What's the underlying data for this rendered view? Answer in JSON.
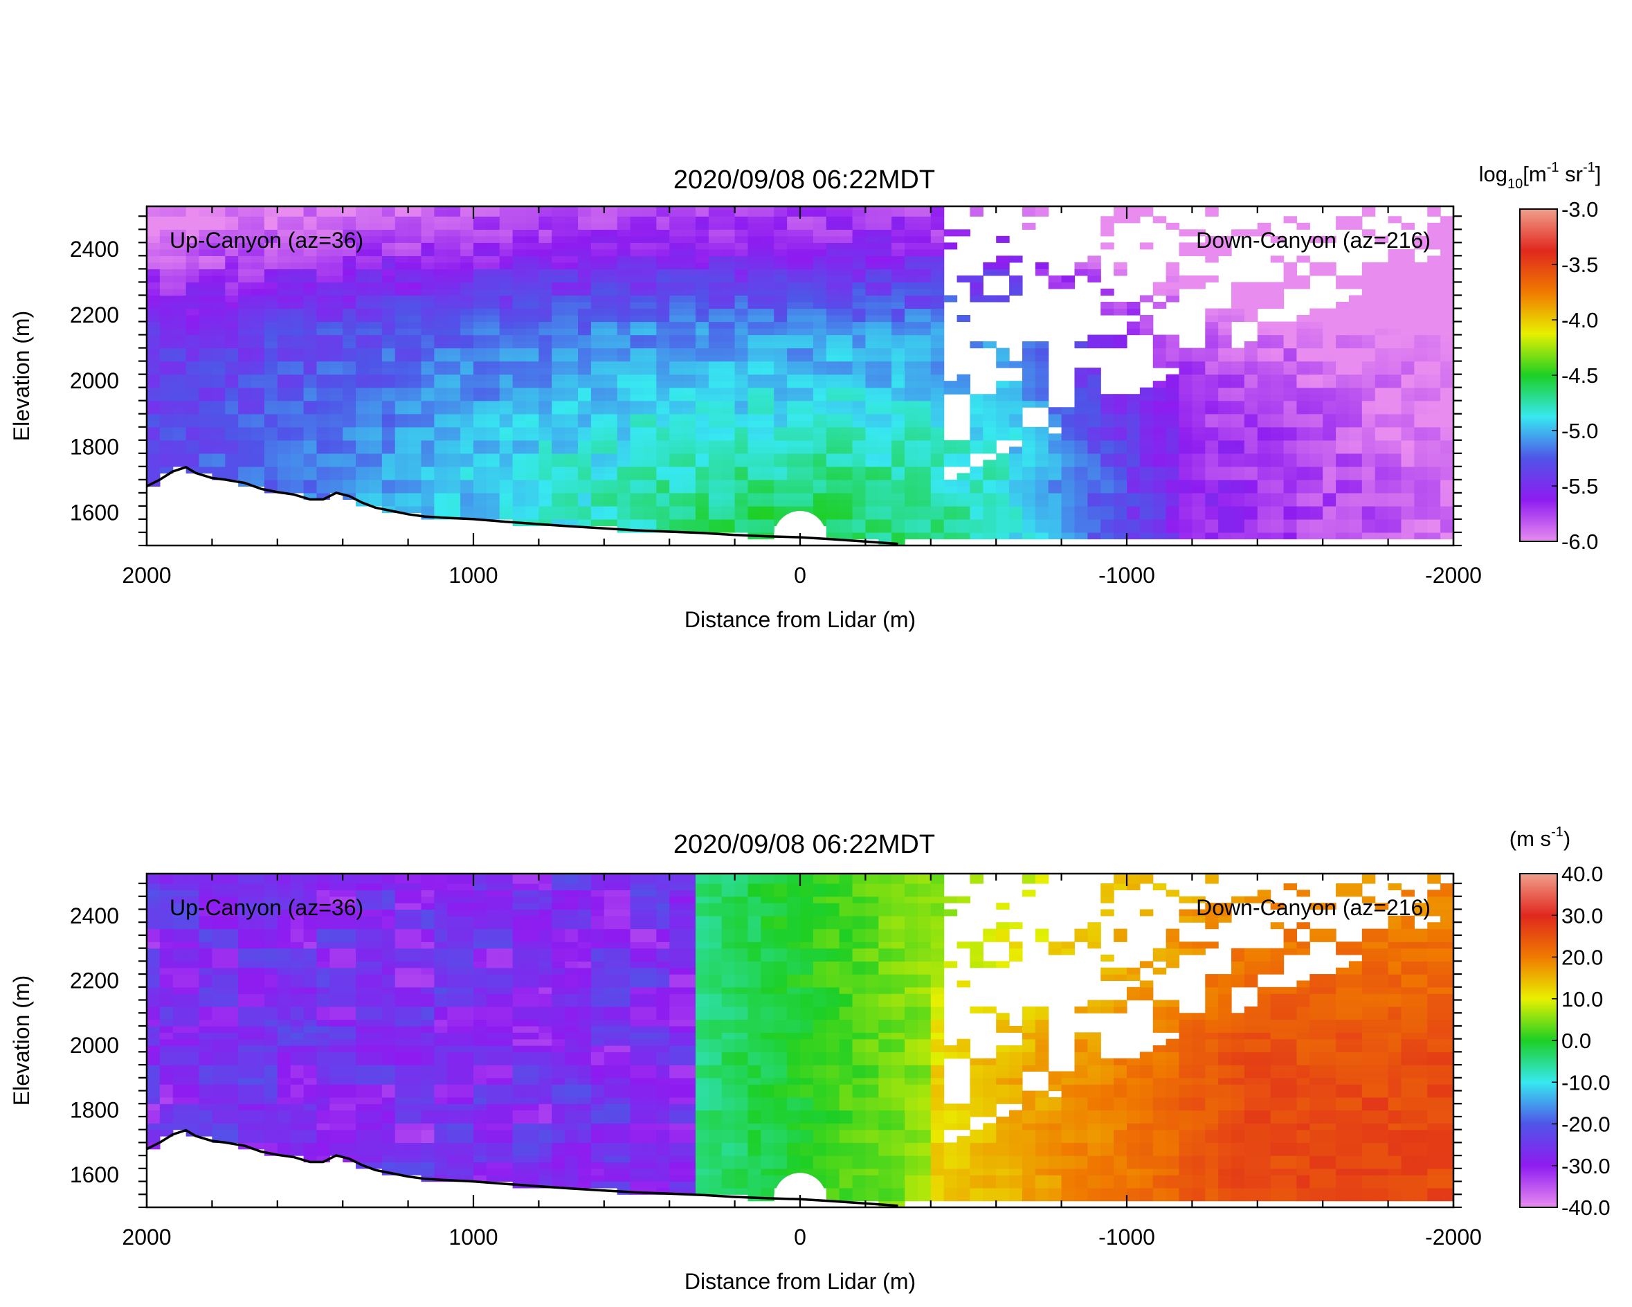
{
  "figure": {
    "colors": {
      "background": "#ffffff",
      "axis": "#000000",
      "terrain": "#000000",
      "blank_region": "#ffffff"
    }
  },
  "chart_data": [
    {
      "type": "heatmap",
      "variable": "backscatter",
      "title": "2020/09/08 06:22MDT",
      "xlabel": "Distance from Lidar (m)",
      "ylabel": "Elevation (m)",
      "xlim": [
        2000,
        -2000
      ],
      "ylim": [
        1500,
        2530
      ],
      "x_axis_reversed": true,
      "xticks": [
        2000,
        1000,
        0,
        -1000,
        -2000
      ],
      "xtick_labels": [
        "2000",
        "1000",
        "0",
        "-1000",
        "-2000"
      ],
      "yticks": [
        1600,
        1800,
        2000,
        2200,
        2400
      ],
      "ytick_labels": [
        "1600",
        "1800",
        "2000",
        "2200",
        "2400"
      ],
      "annotations": [
        {
          "text": "Up-Canyon (az=36)",
          "placement": "top-left"
        },
        {
          "text": "Down-Canyon (az=216)",
          "placement": "top-right"
        }
      ],
      "colorbar": {
        "label_prefix": "log",
        "label_sub": "10",
        "label_body": "[m",
        "label_exp1": "-1",
        "label_mid": " sr",
        "label_exp2": "-1",
        "label_close": "]",
        "range": [
          -6.0,
          -3.0
        ],
        "tick_values": [
          -3.0,
          -3.5,
          -4.0,
          -4.5,
          -5.0,
          -5.5,
          -6.0
        ],
        "tick_labels": [
          "-3.0",
          "-3.5",
          "-4.0",
          "-4.5",
          "-5.0",
          "-5.5",
          "-6.0"
        ],
        "colormap": [
          "#e88cf0",
          "#8e1cf0",
          "#4f55e8",
          "#37e8f0",
          "#1dcf24",
          "#e8f000",
          "#f07a00",
          "#e0281e",
          "#f0a08c"
        ]
      },
      "field": {
        "description_values": [
          {
            "region": "near lidar fan (x -600..700, below 2000 m)",
            "value": -4.6
          },
          {
            "region": "middle band (x -900..1200, 1900-2300 m)",
            "value": -5.1
          },
          {
            "region": "upper left (x 800..2000, above 2100 m)",
            "value": -5.5
          },
          {
            "region": "down-canyon aloft (x -700..-2000)",
            "value": -5.9
          }
        ]
      }
    },
    {
      "type": "heatmap",
      "variable": "radial_velocity",
      "title": "2020/09/08 06:22MDT",
      "xlabel": "Distance from Lidar (m)",
      "ylabel": "Elevation (m)",
      "xlim": [
        2000,
        -2000
      ],
      "ylim": [
        1500,
        2530
      ],
      "x_axis_reversed": true,
      "xticks": [
        2000,
        1000,
        0,
        -1000,
        -2000
      ],
      "xtick_labels": [
        "2000",
        "1000",
        "0",
        "-1000",
        "-2000"
      ],
      "yticks": [
        1600,
        1800,
        2000,
        2200,
        2400
      ],
      "ytick_labels": [
        "1600",
        "1800",
        "2000",
        "2200",
        "2400"
      ],
      "annotations": [
        {
          "text": "Up-Canyon (az=36)",
          "placement": "top-left"
        },
        {
          "text": "Down-Canyon (az=216)",
          "placement": "top-right"
        }
      ],
      "colorbar": {
        "label_prefix": "(m s",
        "label_exp": "-1",
        "label_close": ")",
        "range": [
          -40.0,
          40.0
        ],
        "tick_values": [
          40.0,
          30.0,
          20.0,
          10.0,
          0.0,
          -10.0,
          -20.0,
          -30.0,
          -40.0
        ],
        "tick_labels": [
          "40.0",
          "30.0",
          "20.0",
          "10.0",
          "0.0",
          "-10.0",
          "-20.0",
          "-30.0",
          "-40.0"
        ],
        "colormap": [
          "#e88cf0",
          "#8e1cf0",
          "#4f55e8",
          "#37e8f0",
          "#1dcf24",
          "#e8f000",
          "#f07a00",
          "#e0281e",
          "#f0a08c"
        ]
      },
      "field": {
        "description_values": [
          {
            "region": "up-canyon side (x 400..2000)",
            "value": -25
          },
          {
            "region": "near lidar (x -100..100)",
            "value": -5
          },
          {
            "region": "transition (x -300..-600)",
            "value": 10
          },
          {
            "region": "down-canyon low levels (x -800..-1800)",
            "value": 22
          }
        ]
      }
    }
  ]
}
